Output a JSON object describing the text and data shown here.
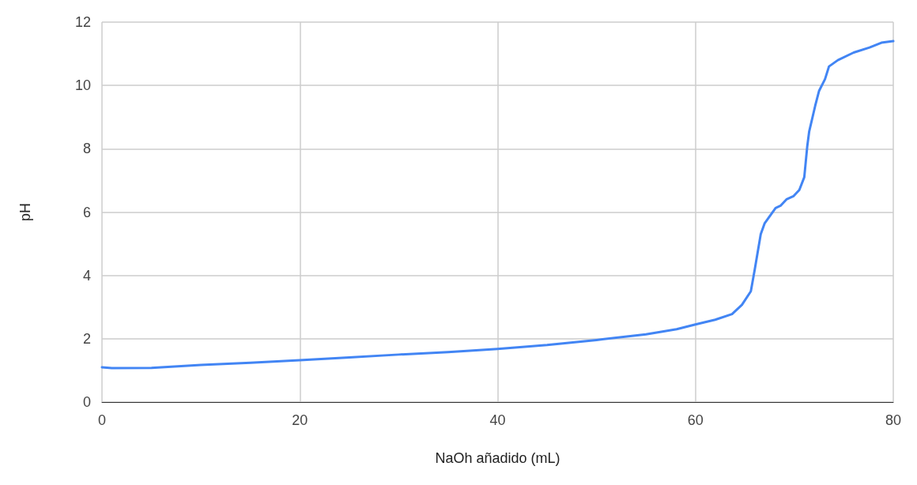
{
  "chart_data": {
    "type": "line",
    "xlabel": "NaOh añadido (mL)",
    "ylabel": "pH",
    "series": [
      {
        "color": "#4285f4",
        "x": [
          0,
          1,
          5,
          10,
          15,
          20,
          25,
          30,
          35,
          40,
          45,
          50,
          55,
          58.1,
          60,
          62,
          63.7,
          64.7,
          65.6,
          66,
          66.6,
          67,
          68.1,
          68.6,
          69.2,
          69.9,
          70.5,
          71,
          71.3,
          71.5,
          72.1,
          72.5,
          73.1,
          73.5,
          74.4,
          76,
          77.6,
          78.8,
          80
        ],
        "values": [
          1.1,
          1.07,
          1.08,
          1.17,
          1.24,
          1.32,
          1.41,
          1.5,
          1.58,
          1.68,
          1.8,
          1.96,
          2.14,
          2.3,
          2.45,
          2.6,
          2.78,
          3.07,
          3.5,
          4.2,
          5.3,
          5.65,
          6.13,
          6.2,
          6.4,
          6.5,
          6.7,
          7.1,
          8.07,
          8.55,
          9.35,
          9.83,
          10.2,
          10.6,
          10.8,
          11.04,
          11.2,
          11.35,
          11.4
        ]
      }
    ],
    "xlim": [
      0,
      80
    ],
    "xticks": [
      0,
      20,
      40,
      60,
      80
    ],
    "ylim": [
      0,
      12
    ],
    "yticks": [
      0,
      2,
      4,
      6,
      8,
      10,
      12
    ],
    "grid": true,
    "marker": "none",
    "line_style": "solid"
  }
}
